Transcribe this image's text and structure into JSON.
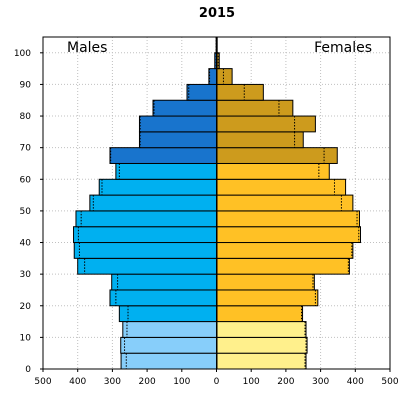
{
  "chart_data": {
    "type": "bar",
    "orientation": "horizontal",
    "title": "2015",
    "annotations": {
      "left": "Males",
      "right": "Females"
    },
    "age_groups": [
      "0-4",
      "5-9",
      "10-14",
      "15-19",
      "20-24",
      "25-29",
      "30-34",
      "35-39",
      "40-44",
      "45-49",
      "50-54",
      "55-59",
      "60-64",
      "65-69",
      "70-74",
      "75-79",
      "80-84",
      "85-89",
      "90-94",
      "95-99",
      "100+"
    ],
    "series": [
      {
        "name": "Males",
        "values": [
          275,
          276,
          270,
          280,
          307,
          302,
          400,
          410,
          412,
          405,
          365,
          338,
          290,
          307,
          222,
          222,
          183,
          85,
          22,
          5,
          1
        ],
        "outline_values": [
          260,
          265,
          258,
          255,
          290,
          285,
          380,
          395,
          398,
          390,
          355,
          330,
          280,
          305,
          220,
          220,
          180,
          80,
          20,
          4,
          1
        ]
      },
      {
        "name": "Females",
        "values": [
          258,
          261,
          258,
          248,
          292,
          282,
          383,
          393,
          415,
          412,
          393,
          372,
          325,
          348,
          250,
          285,
          220,
          135,
          45,
          8,
          2
        ],
        "outline_values": [
          255,
          258,
          255,
          245,
          285,
          278,
          380,
          390,
          410,
          405,
          360,
          340,
          295,
          310,
          225,
          225,
          180,
          80,
          20,
          5,
          1
        ]
      }
    ],
    "xlim": [
      -500,
      500
    ],
    "ylim": [
      0,
      105
    ],
    "x_ticks": [
      -500,
      -400,
      -300,
      -200,
      -100,
      0,
      100,
      200,
      300,
      400,
      500
    ],
    "x_tick_labels": [
      "500",
      "400",
      "300",
      "200",
      "100",
      "0",
      "100",
      "200",
      "300",
      "400",
      "500"
    ],
    "y_ticks": [
      0,
      10,
      20,
      30,
      40,
      50,
      60,
      70,
      80,
      90,
      100
    ],
    "grid": true,
    "colors": {
      "male_child": "#87CEFA",
      "male_adult": "#00B0F0",
      "male_senior": "#1874CD",
      "female_child": "#FFF08C",
      "female_adult": "#FFC125",
      "female_senior": "#CD9B1D",
      "bar_edge": "#000000",
      "outline": "#000000",
      "grid": "#C0C0C0"
    }
  }
}
